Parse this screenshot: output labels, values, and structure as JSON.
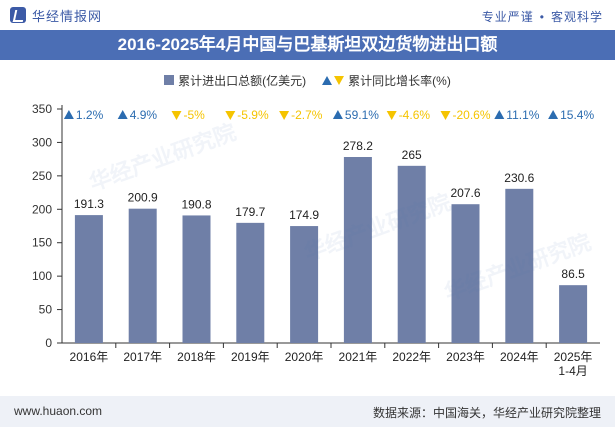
{
  "header": {
    "logo_text": "华经情报网",
    "tagline_left": "专业严谨",
    "tagline_right": "客观科学"
  },
  "footer": {
    "website": "www.huaon.com",
    "source": "数据来源：中国海关，华经产业研究院整理"
  },
  "watermark": "华经产业研究院",
  "colors": {
    "bar": "#6f7fa7",
    "title_band": "#4b6eb5",
    "up": "#2b6cb0",
    "down": "#f5c400"
  },
  "chart_data": {
    "type": "bar",
    "title": "2016-2025年4月中国与巴基斯坦双边货物进出口额",
    "categories": [
      "2016年",
      "2017年",
      "2018年",
      "2019年",
      "2020年",
      "2021年",
      "2022年",
      "2023年",
      "2024年",
      "2025年\n1-4月"
    ],
    "series": [
      {
        "name": "累计进出口总额(亿美元)",
        "values": [
          191.3,
          200.9,
          190.8,
          179.7,
          174.9,
          278.2,
          265,
          207.6,
          230.6,
          86.5
        ],
        "labels": [
          "191.3",
          "200.9",
          "190.8",
          "179.7",
          "174.9",
          "278.2",
          "265",
          "207.6",
          "230.6",
          "86.5"
        ]
      },
      {
        "name": "累计同比增长率(%)",
        "values": [
          1.2,
          4.9,
          -5,
          -5.9,
          -2.7,
          59.1,
          -4.6,
          -20.6,
          11.1,
          15.4
        ],
        "labels": [
          "1.2%",
          "4.9%",
          "-5%",
          "-5.9%",
          "-2.7%",
          "59.1%",
          "-4.6%",
          "-20.6%",
          "11.1%",
          "15.4%"
        ]
      }
    ],
    "ylim": [
      0,
      350
    ],
    "yticks": [
      "0",
      "50",
      "100",
      "150",
      "200",
      "250",
      "300",
      "350"
    ],
    "legend_position": "top"
  }
}
